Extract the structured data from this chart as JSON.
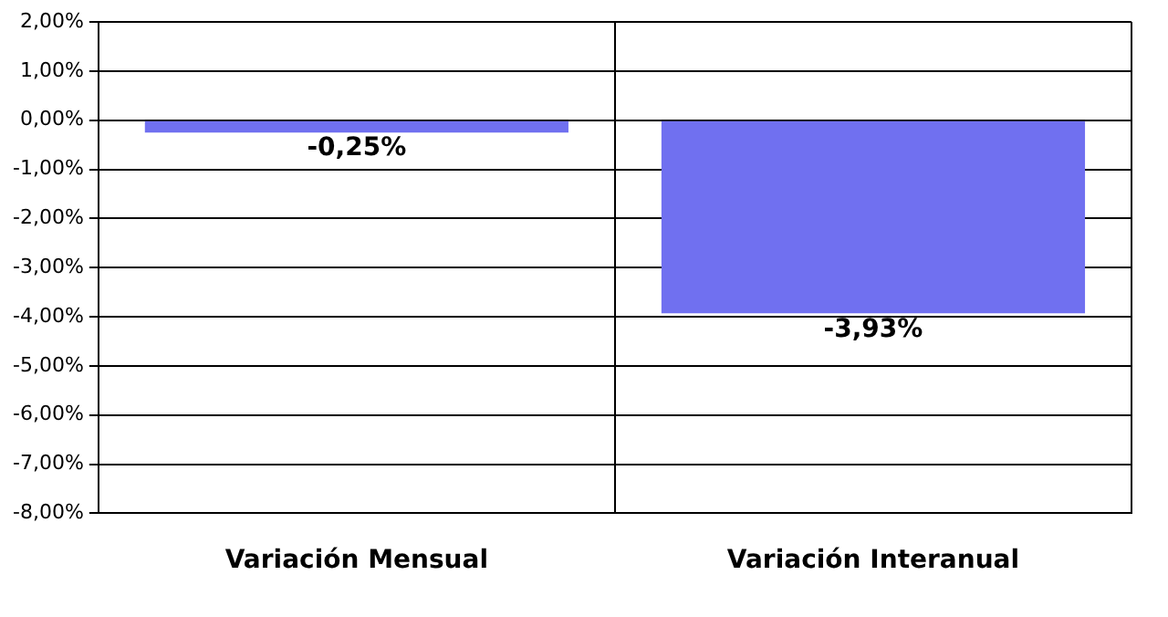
{
  "chart_data": {
    "type": "bar",
    "categories": [
      "Variación Mensual",
      "Variación Interanual"
    ],
    "values": [
      -0.25,
      -3.93
    ],
    "value_labels": [
      "-0,25%",
      "-3,93%"
    ],
    "color": "#7070f0",
    "ylim": [
      -8,
      2
    ],
    "yticks": [
      {
        "value": 2,
        "label": "2,00%"
      },
      {
        "value": 1,
        "label": "1,00%"
      },
      {
        "value": 0,
        "label": "0,00%"
      },
      {
        "value": -1,
        "label": "-1,00%"
      },
      {
        "value": -2,
        "label": "-2,00%"
      },
      {
        "value": -3,
        "label": "-3,00%"
      },
      {
        "value": -4,
        "label": "-4,00%"
      },
      {
        "value": -5,
        "label": "-5,00%"
      },
      {
        "value": -6,
        "label": "-6,00%"
      },
      {
        "value": -7,
        "label": "-7,00%"
      },
      {
        "value": -8,
        "label": "-8,00%"
      }
    ],
    "grid": true
  }
}
